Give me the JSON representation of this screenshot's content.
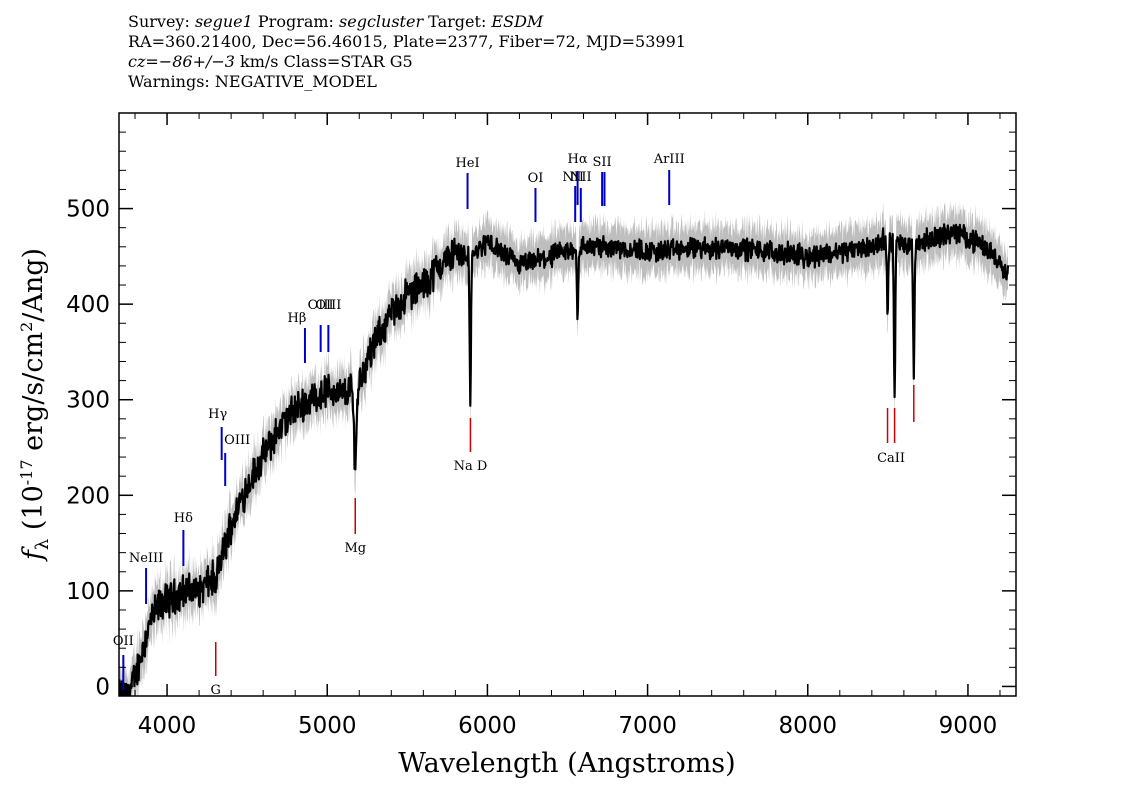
{
  "header": {
    "line1": {
      "survey_label": "Survey: ",
      "survey": "segue1",
      "program_label": " Program: ",
      "program": "segcluster",
      "target_label": " Target: ",
      "target": "ESDM"
    },
    "line2": "RA=360.21400, Dec=56.46015, Plate=2377, Fiber=72, MJD=53991",
    "line3": {
      "cz": "cz=−86+/−3",
      "rest": " km/s Class=STAR G5"
    },
    "line4": "Warnings: NEGATIVE_MODEL"
  },
  "chart_data": {
    "type": "line",
    "title": "",
    "xlabel": "Wavelength (Angstroms)",
    "ylabel": "f_λ (10^-17 erg/s/cm^2/Ang)",
    "xlim": [
      3700,
      9300
    ],
    "ylim": [
      -10,
      600
    ],
    "x_ticks": [
      4000,
      5000,
      6000,
      7000,
      8000,
      9000
    ],
    "y_ticks": [
      0,
      100,
      200,
      300,
      400,
      500
    ],
    "flux_anchors": {
      "x": [
        3700,
        3760,
        3800,
        3850,
        3900,
        3950,
        4000,
        4100,
        4200,
        4300,
        4350,
        4400,
        4500,
        4600,
        4700,
        4800,
        4900,
        5000,
        5100,
        5200,
        5300,
        5400,
        5500,
        5600,
        5700,
        5800,
        5900,
        6000,
        6200,
        6400,
        6600,
        6800,
        7000,
        7500,
        8000,
        8200,
        8400,
        8500,
        8600,
        8700,
        8800,
        8900,
        9000,
        9100,
        9200,
        9250
      ],
      "y": [
        -10,
        -10,
        10,
        40,
        70,
        85,
        90,
        100,
        100,
        115,
        140,
        170,
        210,
        240,
        270,
        290,
        300,
        310,
        305,
        320,
        360,
        390,
        410,
        420,
        440,
        455,
        450,
        465,
        440,
        450,
        460,
        460,
        455,
        460,
        450,
        455,
        460,
        470,
        460,
        465,
        470,
        475,
        470,
        460,
        445,
        430
      ]
    },
    "absorption_dips": [
      {
        "x": 4305,
        "depth": 20,
        "width": 8
      },
      {
        "x": 5175,
        "depth": 80,
        "width": 12
      },
      {
        "x": 5893,
        "depth": 150,
        "width": 6
      },
      {
        "x": 6563,
        "depth": 70,
        "width": 6
      },
      {
        "x": 8498,
        "depth": 80,
        "width": 6
      },
      {
        "x": 8542,
        "depth": 160,
        "width": 6
      },
      {
        "x": 8662,
        "depth": 130,
        "width": 6
      }
    ],
    "emission_lines": [
      {
        "label": "OII",
        "x": 3727
      },
      {
        "label": "NeIII",
        "x": 3869
      },
      {
        "label": "Hδ",
        "x": 4102
      },
      {
        "label": "Hγ",
        "x": 4341
      },
      {
        "label": "OIII",
        "x": 4363
      },
      {
        "label": "Hβ",
        "x": 4861
      },
      {
        "label": "OIII",
        "x": 4959
      },
      {
        "label": "OIII",
        "x": 5007
      },
      {
        "label": "HeI",
        "x": 5876
      },
      {
        "label": "OI",
        "x": 6300
      },
      {
        "label": "NII",
        "x": 6548
      },
      {
        "label": "Hα",
        "x": 6563
      },
      {
        "label": "NII",
        "x": 6583
      },
      {
        "label": "SII",
        "x": 6716
      },
      {
        "label": "SII",
        "x": 6731
      },
      {
        "label": "ArIII",
        "x": 7135
      }
    ],
    "absorption_lines": [
      {
        "label": "G",
        "x": 4304
      },
      {
        "label": "Mg",
        "x": 5175
      },
      {
        "label": "Na D",
        "x": 5894
      },
      {
        "label": "CaII",
        "x": 8498
      },
      {
        "label": "CaII",
        "x": 8542
      },
      {
        "label": "CaII",
        "x": 8662
      }
    ],
    "colors": {
      "flux": "#000000",
      "error_band": "#bebebe",
      "emission": "#0000cc",
      "absorption": "#cc0000"
    }
  }
}
